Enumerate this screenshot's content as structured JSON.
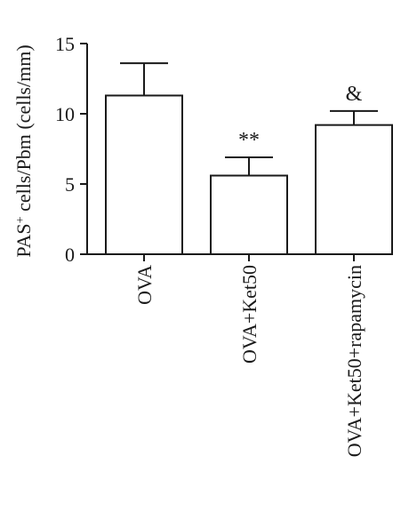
{
  "chart_data": {
    "type": "bar",
    "categories": [
      "OVA",
      "OVA+Ket50",
      "OVA+Ket50+rapamycin"
    ],
    "values": [
      11.3,
      5.6,
      9.2
    ],
    "errors": [
      2.3,
      1.3,
      1.0
    ],
    "annotations": [
      "",
      "**",
      "&"
    ],
    "ylabel_prefix": "PAS",
    "ylabel_sup": "+",
    "ylabel_suffix": " cells/Pbm (cells/mm)",
    "ylim": [
      0,
      15
    ],
    "yticks": [
      0,
      5,
      10,
      15
    ],
    "ytick_labels": [
      "0",
      "5",
      "10",
      "15"
    ],
    "bar_fill": "#ffffff",
    "bar_stroke": "#1a1a1a",
    "grid": false,
    "legend": "none"
  }
}
